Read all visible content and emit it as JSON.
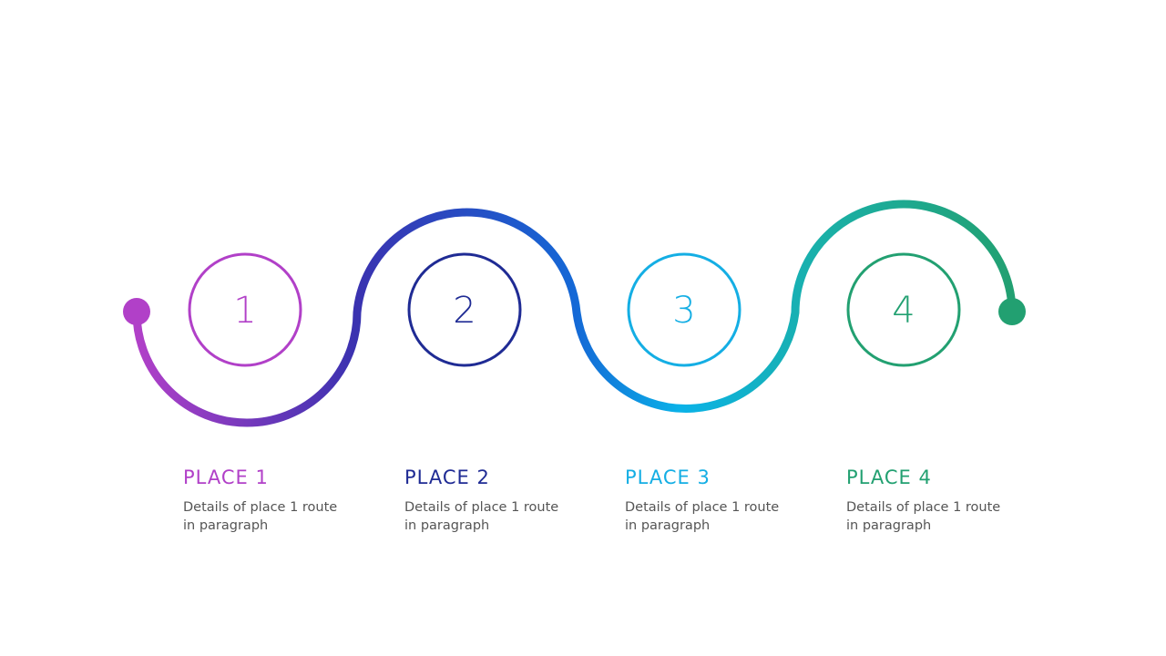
{
  "steps": [
    {
      "number": "1",
      "title": "PLACE 1",
      "description": "Details of place 1 route in paragraph",
      "color": "#b140c8"
    },
    {
      "number": "2",
      "title": "PLACE 2",
      "description": "Details of place 1 route in paragraph",
      "color": "#1f2b94"
    },
    {
      "number": "3",
      "title": "PLACE 3",
      "description": "Details of place 1 route in paragraph",
      "color": "#14aee4"
    },
    {
      "number": "4",
      "title": "PLACE 4",
      "description": "Details of place 1 route in paragraph",
      "color": "#22a071"
    }
  ],
  "route": {
    "gradient_colors": [
      "#b140c8",
      "#3a32b0",
      "#1468d6",
      "#0ab2e8",
      "#1ab0a8",
      "#22a071"
    ],
    "start_dot_color": "#b140c8",
    "end_dot_color": "#22a071"
  }
}
